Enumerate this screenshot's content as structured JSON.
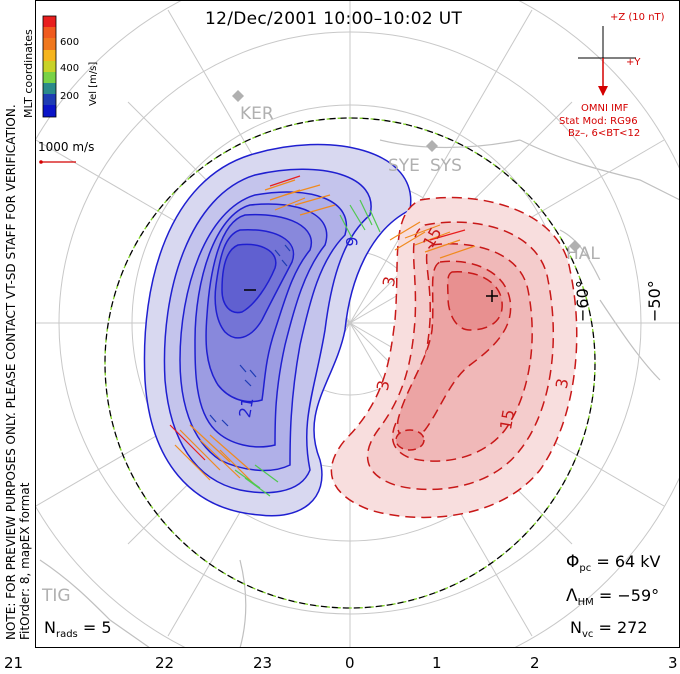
{
  "title": "12/Dec/2001  10:00–10:02 UT",
  "side_note_1": "NOTE: FOR PREVIEW PURPOSES ONLY. PLEASE CONTACT VT-SD STAFF FOR VERIFICATION.",
  "side_note_2": "FitOrder: 8, mapEX format",
  "colorbar": {
    "coordinates": "MLT coordinates",
    "unit": "Vel [m/s]",
    "ticks": [
      "600",
      "400",
      "200"
    ],
    "colors": [
      "#e81e1e",
      "#f0781e",
      "#f5b41e",
      "#a0d23c",
      "#50c850",
      "#2a8a8a",
      "#1e3cb4",
      "#0a14c8"
    ]
  },
  "vector_scale": "1000 m/s",
  "imf": {
    "z_label": "+Z (10 nT)",
    "y_label": "+Y",
    "source": "OMNI IMF",
    "stat_mod": "Stat Mod: RG96",
    "bin": "Bz–, 6<BT<12"
  },
  "stations": [
    "KER",
    "SYE",
    "SYS",
    "HAL",
    "TIG"
  ],
  "latitude_labels": [
    "−60°",
    "−50°"
  ],
  "contour_labels": [
    "9",
    "3",
    "15",
    "3",
    "21",
    "15",
    "3"
  ],
  "extrema": {
    "min_symbol": "–",
    "max_symbol": "+"
  },
  "stats": {
    "phi_pc": "64 kV",
    "lambda_hm": "−59°",
    "n_vc": "272",
    "n_rads": "5"
  },
  "mlt_ticks": [
    "21",
    "22",
    "23",
    "0",
    "1",
    "2",
    "3"
  ],
  "colors": {
    "negative_cell": "#2b2be0",
    "positive_cell": "#d41c1c",
    "boundary": "#7ed321",
    "grid": "#c8c8c8"
  }
}
